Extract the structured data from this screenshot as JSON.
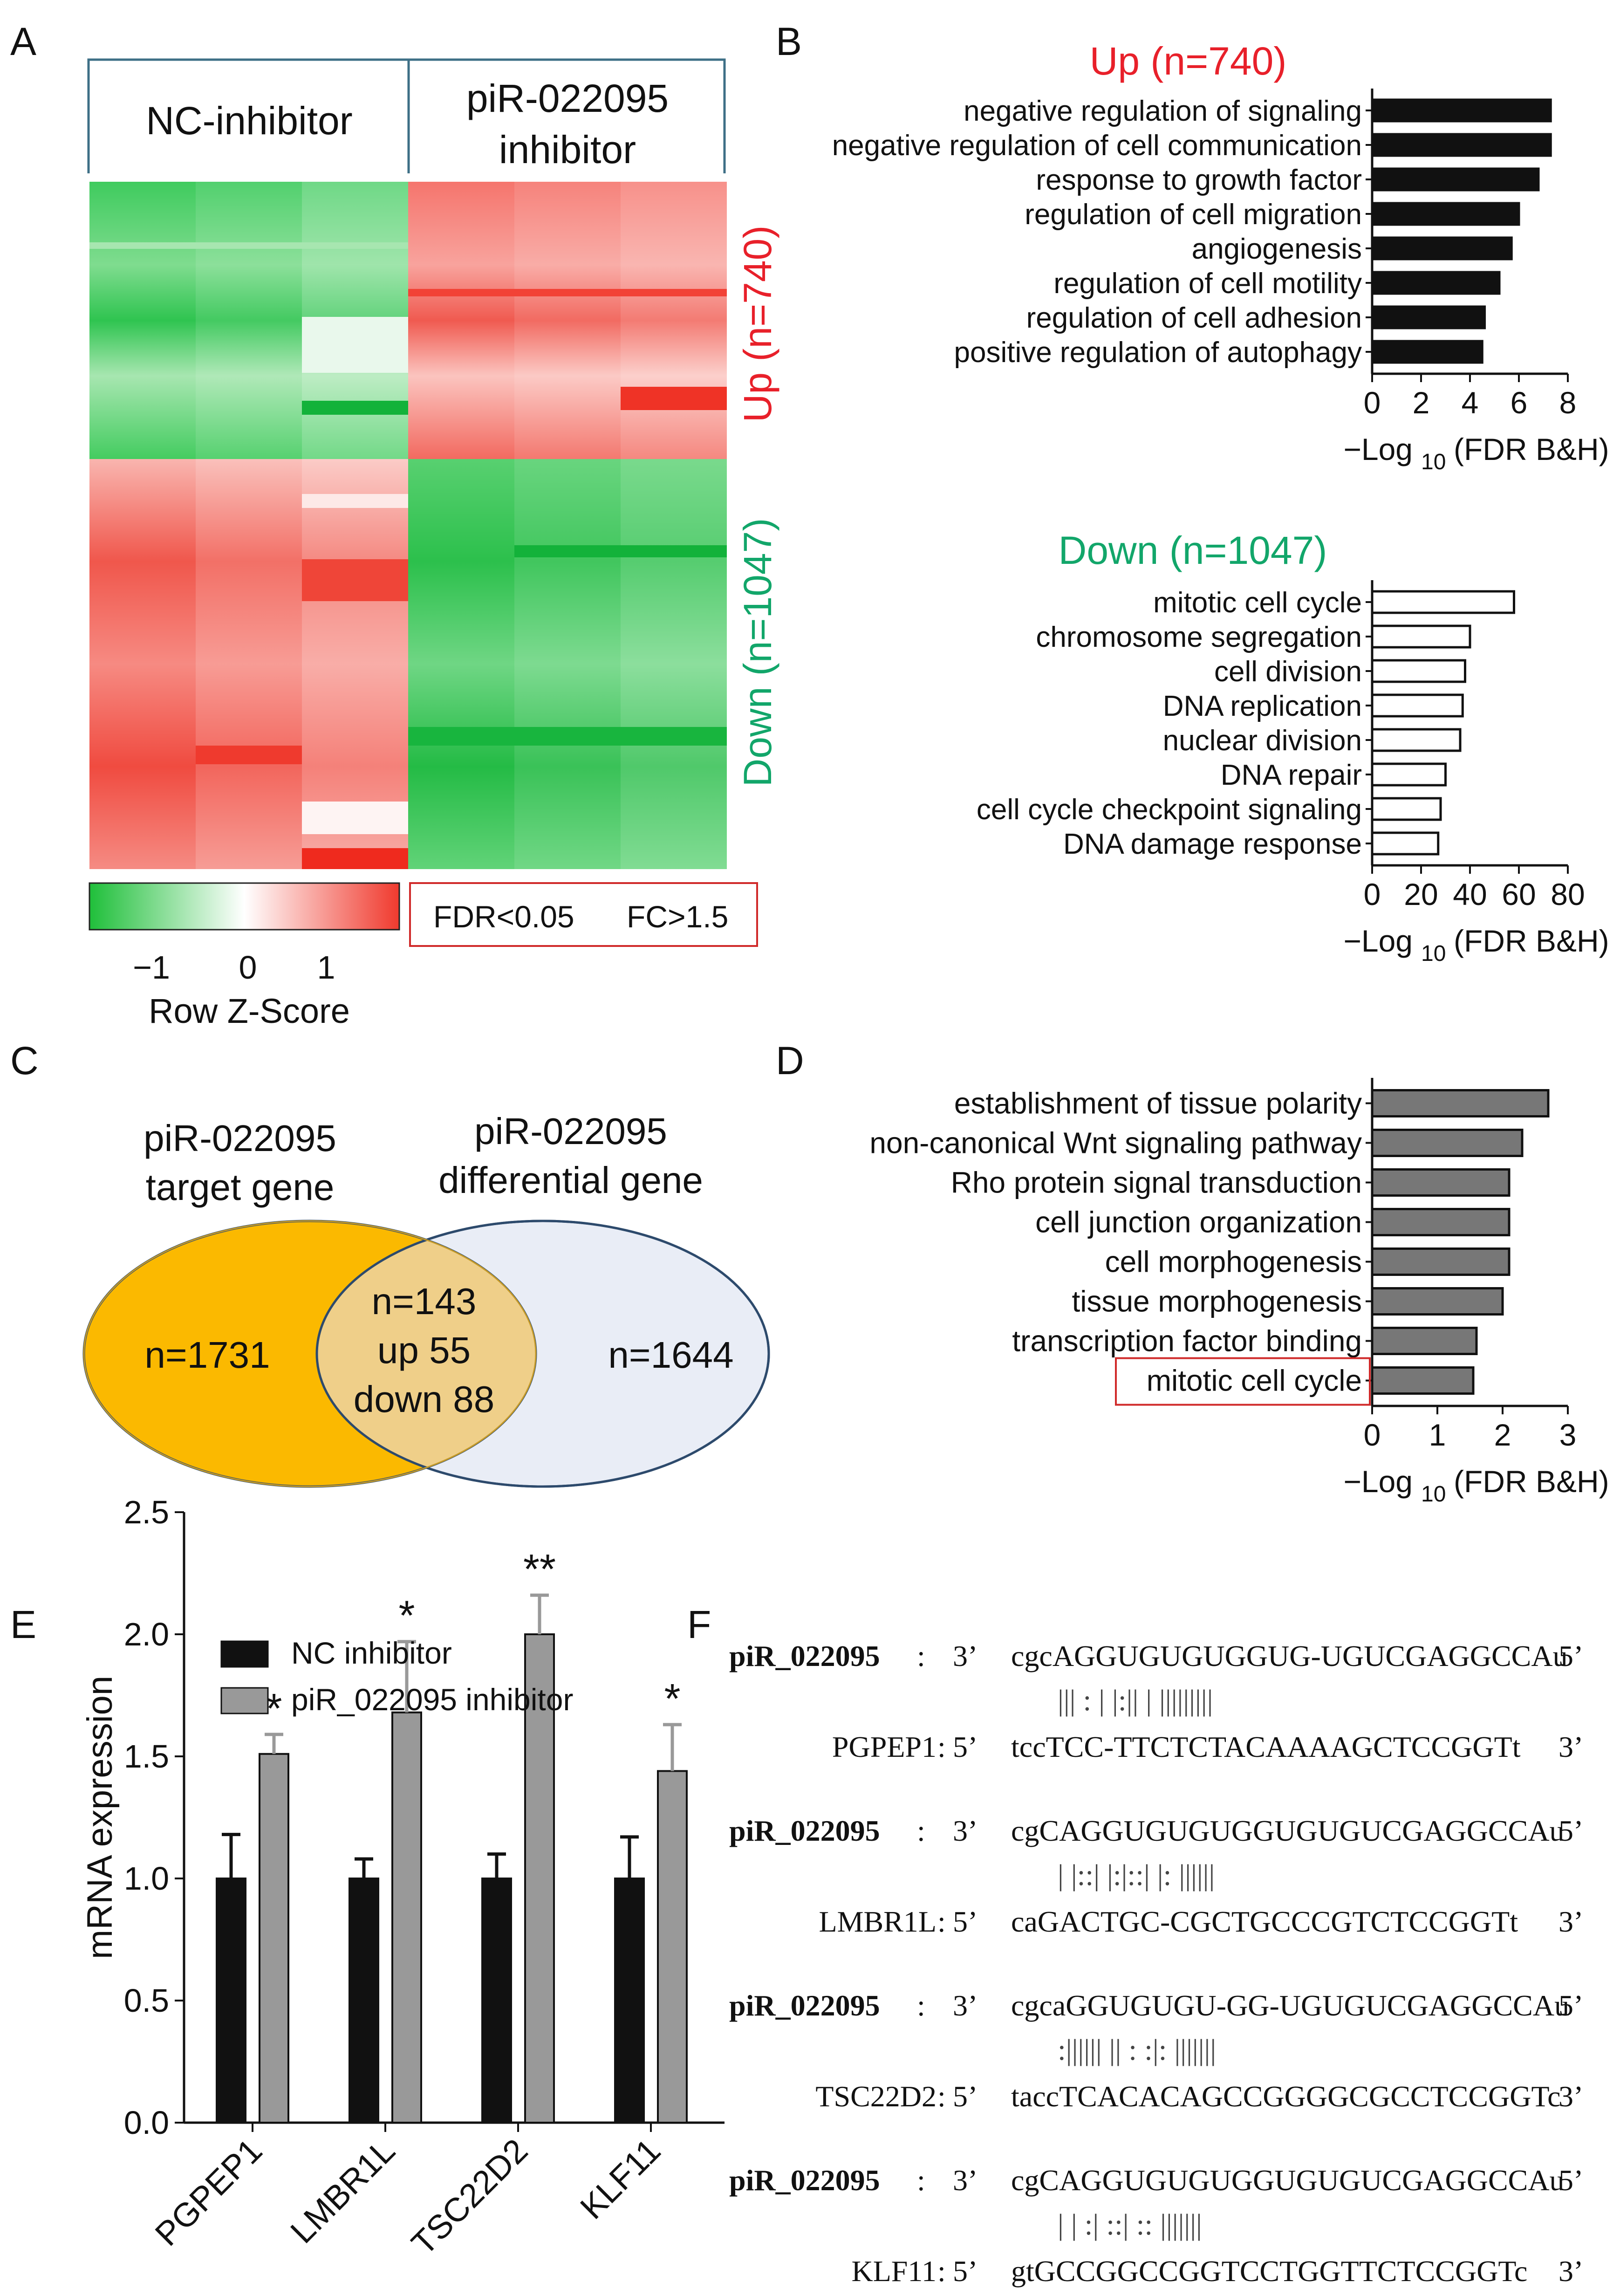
{
  "panel_labels": {
    "a": "A",
    "b": "B",
    "c": "C",
    "d": "D",
    "e": "E",
    "f": "F"
  },
  "panel_a": {
    "col_nc": "NC-inhibitor",
    "col_pir_line1": "piR-022095",
    "col_pir_line2": "inhibitor",
    "up_label": "Up (n=740)",
    "down_label": "Down (n=1047)",
    "legend_title": "Row Z-Score",
    "legend_ticks": [
      "−1",
      "0",
      "1"
    ],
    "filter_fdr": "FDR<0.05",
    "filter_fc": "FC>1.5",
    "colors": {
      "green": "#1fbf3a",
      "white": "#ffffff",
      "red": "#f03a2e",
      "up": "#e8202a",
      "down": "#12a66a"
    }
  },
  "chart_data": [
    {
      "type": "bar",
      "orientation": "horizontal",
      "title": "Up (n=740)",
      "categories": [
        "negative regulation of signaling",
        "negative regulation of cell communication",
        "response to growth factor",
        "regulation of cell migration",
        "angiogenesis",
        "regulation of cell motility",
        "regulation of cell adhesion",
        "positive regulation of autophagy"
      ],
      "values": [
        7.3,
        7.3,
        6.8,
        6.0,
        5.7,
        5.2,
        4.6,
        4.5
      ],
      "xlabel_main": "−Log",
      "xlabel_sub": "10",
      "xlabel_rest": "(FDR B&H)",
      "xlim": [
        0,
        8
      ],
      "ticks": [
        "0",
        "2",
        "4",
        "6",
        "8"
      ],
      "fill": "#111111"
    },
    {
      "type": "bar",
      "orientation": "horizontal",
      "title": "Down (n=1047)",
      "categories": [
        "mitotic cell cycle",
        "chromosome segregation",
        "cell division",
        "DNA replication",
        "nuclear division",
        "DNA repair",
        "cell cycle checkpoint signaling",
        "DNA damage response"
      ],
      "values": [
        58,
        40,
        38,
        37,
        36,
        30,
        28,
        27
      ],
      "xlabel_main": "−Log",
      "xlabel_sub": "10",
      "xlabel_rest": "(FDR B&H)",
      "xlim": [
        0,
        80
      ],
      "ticks": [
        "0",
        "20",
        "40",
        "60",
        "80"
      ],
      "fill": "#ffffff"
    },
    {
      "type": "bar",
      "orientation": "horizontal",
      "categories": [
        "establishment of tissue polarity",
        "non-canonical Wnt signaling pathway",
        "Rho protein signal transduction",
        "cell junction organization",
        "cell morphogenesis",
        "tissue morphogenesis",
        "transcription factor binding",
        "mitotic cell cycle"
      ],
      "values": [
        2.7,
        2.3,
        2.1,
        2.1,
        2.1,
        2.0,
        1.6,
        1.55
      ],
      "highlighted": "mitotic cell cycle",
      "xlabel_main": "−Log",
      "xlabel_sub": "10",
      "xlabel_rest": "(FDR B&H)",
      "xlim": [
        0,
        3
      ],
      "ticks": [
        "0",
        "1",
        "2",
        "3"
      ],
      "fill": "#777777"
    },
    {
      "type": "bar",
      "categories": [
        "PGPEP1",
        "LMBR1L",
        "TSC22D2",
        "KLF11"
      ],
      "series": [
        {
          "name": "NC inhibitor",
          "values": [
            1.0,
            1.0,
            1.0,
            1.0
          ],
          "error": [
            0.18,
            0.08,
            0.1,
            0.17
          ],
          "color": "#111111"
        },
        {
          "name": "piR_022095 inhibitor",
          "values": [
            1.51,
            1.68,
            2.0,
            1.44
          ],
          "error": [
            0.08,
            0.29,
            0.16,
            0.19
          ],
          "color": "#999999"
        }
      ],
      "significance": [
        "*",
        "*",
        "**",
        "*"
      ],
      "ylabel": "mRNA expression",
      "ylim": [
        0,
        2.5
      ],
      "yticks": [
        "0.0",
        "0.5",
        "1.0",
        "1.5",
        "2.0",
        "2.5"
      ]
    }
  ],
  "panel_c": {
    "left_title_1": "piR-022095",
    "left_title_2": "target gene",
    "right_title_1": "piR-022095",
    "right_title_2": "differential gene",
    "left_only": "n=1731",
    "overlap_total": "n=143",
    "overlap_up": "up 55",
    "overlap_down": "down 88",
    "right_only": "n=1644",
    "colors": {
      "left": "#fbb900",
      "overlap": "#efcf89",
      "right": "#e9edf6",
      "stroke": "#2d4a6c"
    }
  },
  "panel_f": {
    "alignments": [
      {
        "pir_name": "piR_022095",
        "pir_end3": "3’",
        "pir_seq": "cgcAGGUGUGUGGUG-UGUCGAGGCCAu",
        "pir_end5": "5’",
        "pairs": "|||  :  |  |:||  |  |||||||||",
        "target_name": "PGPEP1",
        "target_end5": "5’",
        "target_seq": "tccTCC-TTCTCTACAAAAGCTCCGGTt",
        "target_end3": "3’"
      },
      {
        "pir_name": "piR_022095",
        "pir_end3": "3’",
        "pir_seq": "cgCAGGUGUGUGGUGUGUCGAGGCCAu",
        "pir_end5": "5’",
        "pairs": "|  |::|  |:|::|  |:  ||||||",
        "target_name": "LMBR1L",
        "target_end5": "5’",
        "target_seq": "caGACTGC-CGCTGCCCGTCTCCGGTt",
        "target_end3": "3’"
      },
      {
        "pir_name": "piR_022095",
        "pir_end3": "3’",
        "pir_seq": "cgcaGGUGUGU-GG-UGUGUCGAGGCCAu",
        "pir_end5": "5’",
        "pairs": ":|||||| ||  :  :|:  |||||||",
        "target_name": "TSC22D2",
        "target_end5": "5’",
        "target_seq": "taccTCACACAGCCGGGGCGCCTCCGGTc",
        "target_end3": "3’"
      },
      {
        "pir_name": "piR_022095",
        "pir_end3": "3’",
        "pir_seq": "cgCAGGUGUGUGGUGUGUCGAGGCCAu",
        "pir_end5": "5’",
        "pairs": "|  |  :|    ::|  ::     |||||||",
        "target_name": "KLF11",
        "target_end5": "5’",
        "target_seq": "gtGCCGGCCGGTCCTGGTTCTCCGGTc",
        "target_end3": "3’"
      }
    ]
  }
}
